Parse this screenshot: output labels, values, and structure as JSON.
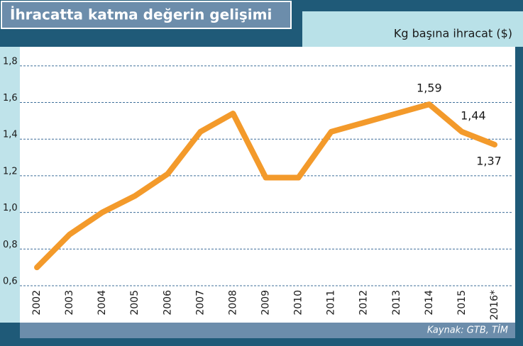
{
  "title": "İhracatta katma değerin gelişimi",
  "source": "Kaynak: GTB, TİM",
  "chart_data": {
    "type": "line",
    "y_label": "Kg başına ihracat ($)",
    "categories": [
      "2002",
      "2003",
      "2004",
      "2005",
      "2006",
      "2007",
      "2008",
      "2009",
      "2010",
      "2011",
      "2012",
      "2013",
      "2014",
      "2015",
      "2016*"
    ],
    "values": [
      0.7,
      0.88,
      1.0,
      1.09,
      1.21,
      1.44,
      1.54,
      1.19,
      1.19,
      1.44,
      1.49,
      1.54,
      1.59,
      1.44,
      1.37
    ],
    "value_labels": [
      null,
      null,
      null,
      null,
      null,
      null,
      null,
      null,
      null,
      null,
      null,
      null,
      "1,59",
      "1,44",
      "1,37"
    ],
    "color": "#f39a2b",
    "ylim": [
      0.6,
      1.9
    ],
    "yticks": [
      {
        "value": 0.6,
        "label": "0,6"
      },
      {
        "value": 0.8,
        "label": "0,8"
      },
      {
        "value": 1.0,
        "label": "1,0"
      },
      {
        "value": 1.2,
        "label": "1,2"
      },
      {
        "value": 1.4,
        "label": "1,4"
      },
      {
        "value": 1.6,
        "label": "1,6"
      },
      {
        "value": 1.8,
        "label": "1,8"
      }
    ],
    "grid": true
  }
}
